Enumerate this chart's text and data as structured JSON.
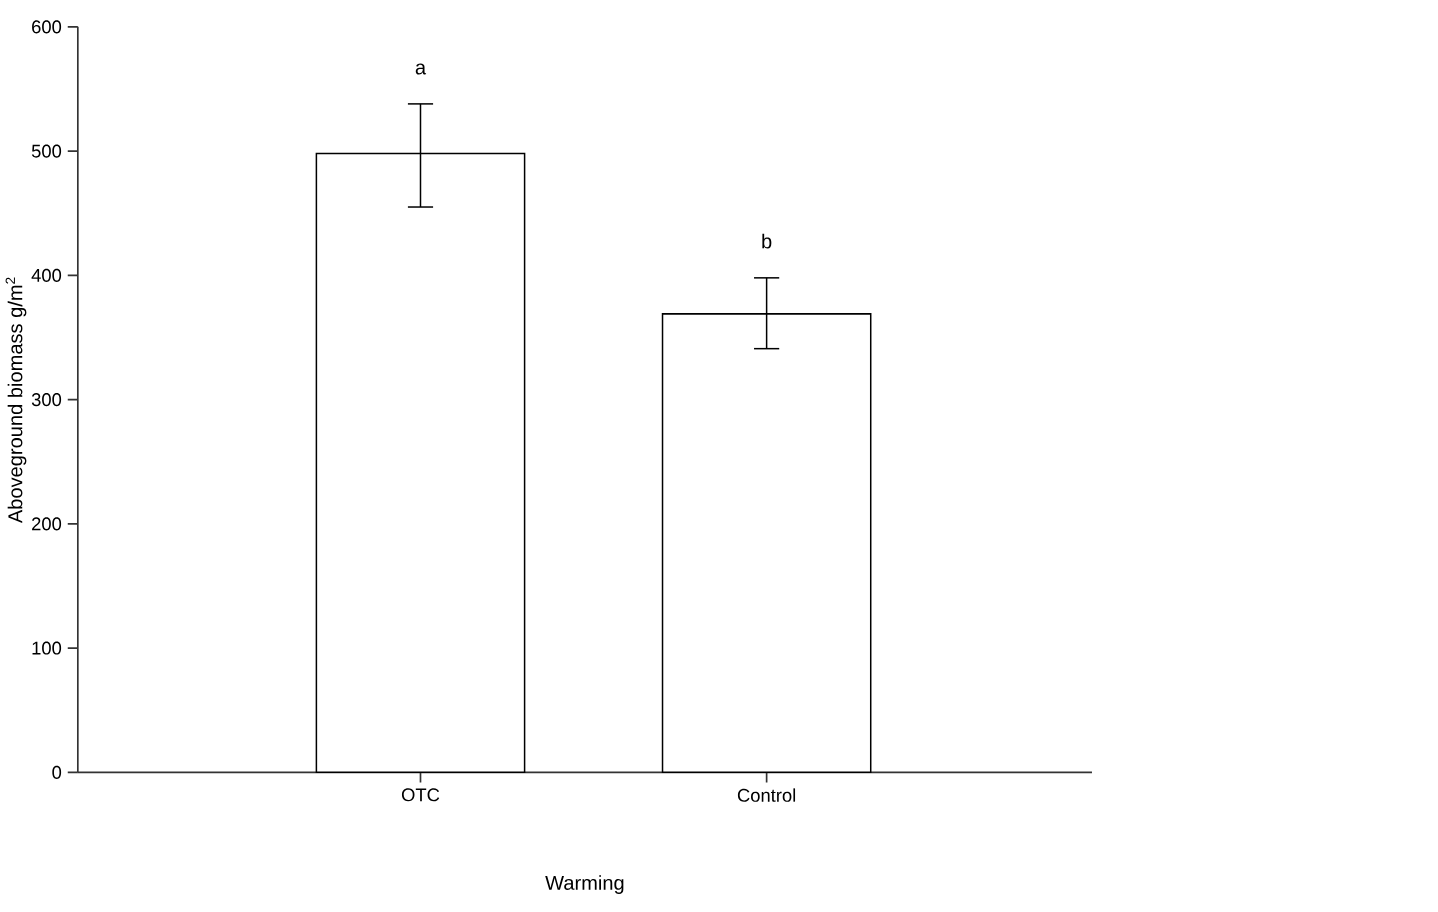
{
  "chart_data": {
    "type": "bar",
    "xlabel": "Warming",
    "ylabel": "Aboveground biomass g/m$^{2}$",
    "categories": [
      "OTC",
      "Control"
    ],
    "values": [
      498,
      369
    ],
    "color": "#ffffff",
    "errors": [
      [
        455,
        538
      ],
      [
        341,
        398
      ]
    ],
    "ylim": [
      0,
      600
    ],
    "yticks": [
      0,
      100,
      200,
      300,
      400,
      500,
      600
    ],
    "annotations": [
      "a",
      "b"
    ]
  }
}
